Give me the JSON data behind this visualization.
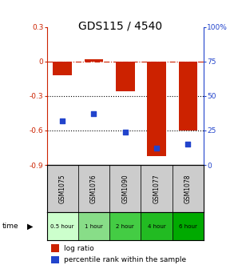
{
  "title": "GDS115 / 4540",
  "samples": [
    "GSM1075",
    "GSM1076",
    "GSM1090",
    "GSM1077",
    "GSM1078"
  ],
  "time_labels": [
    "0.5 hour",
    "1 hour",
    "2 hour",
    "4 hour",
    "6 hour"
  ],
  "log_ratios": [
    -0.12,
    0.02,
    -0.26,
    -0.82,
    -0.6
  ],
  "percentile_ranks": [
    32,
    37,
    24,
    12,
    15
  ],
  "bar_color": "#cc2200",
  "dot_color": "#2244cc",
  "ylim_left": [
    -0.9,
    0.3
  ],
  "ylim_right": [
    0,
    100
  ],
  "left_yticks": [
    0.3,
    0.0,
    -0.3,
    -0.6,
    -0.9
  ],
  "right_yticks": [
    100,
    75,
    50,
    25,
    0
  ],
  "bar_width": 0.6,
  "sample_bg_color": "#cccccc",
  "title_fontsize": 10,
  "tick_fontsize": 6.5,
  "legend_fontsize": 6.5,
  "time_colors": [
    "#ccffcc",
    "#88dd88",
    "#44cc44",
    "#22bb22",
    "#00aa00"
  ]
}
